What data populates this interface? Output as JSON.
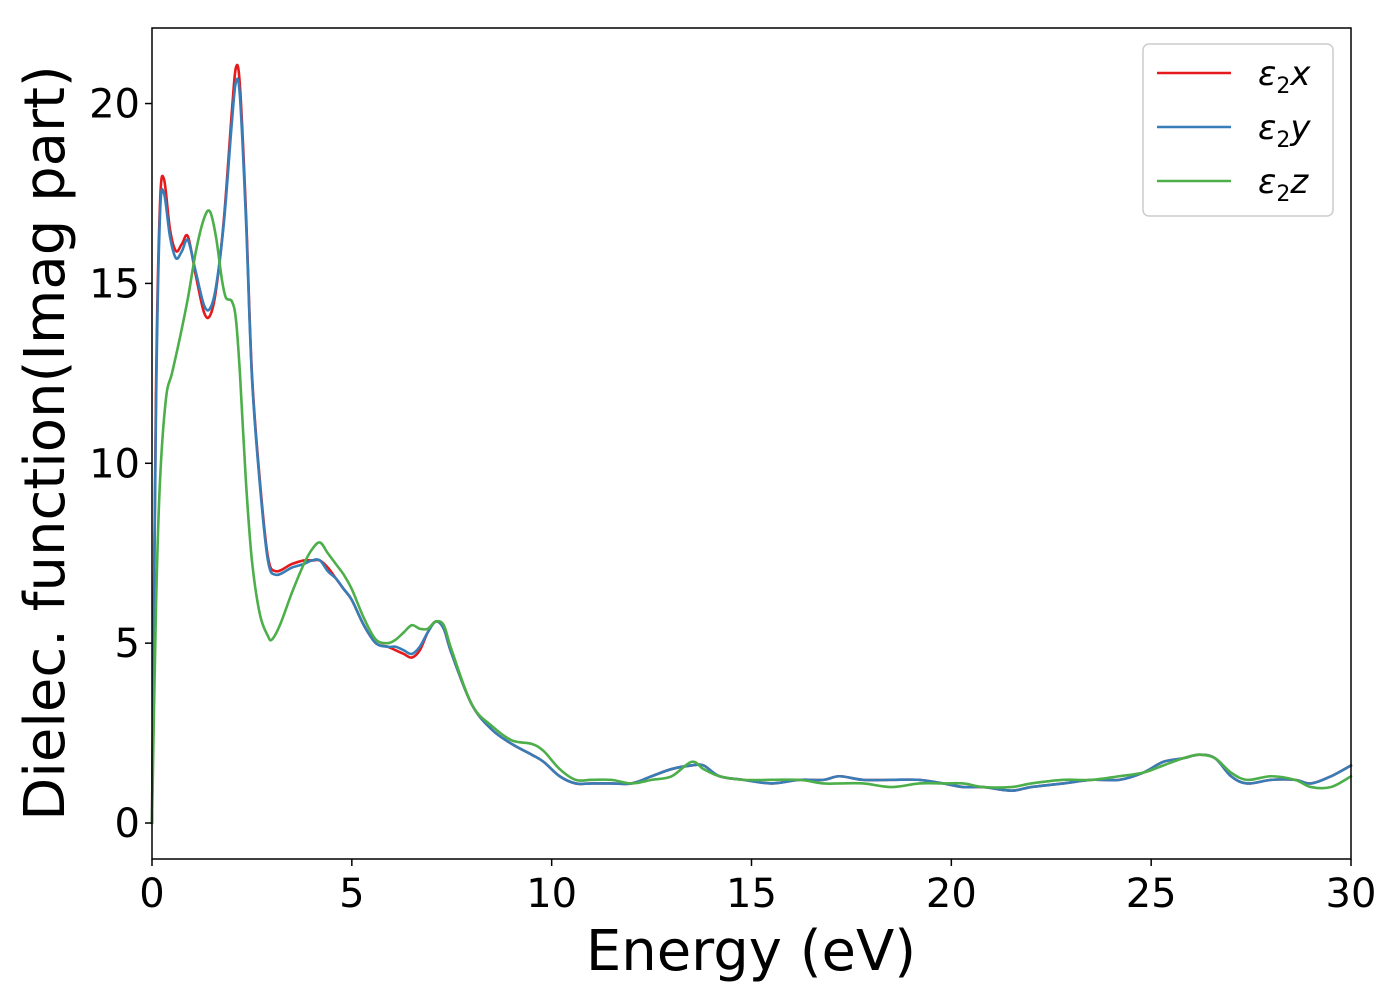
{
  "chart_data": {
    "type": "line",
    "xlabel": "Energy (eV)",
    "ylabel": "Dielec. function(Imag part)",
    "xlim": [
      0,
      30
    ],
    "ylim": [
      -1.0,
      22.1
    ],
    "xticks": [
      0,
      5,
      10,
      15,
      20,
      25,
      30
    ],
    "yticks": [
      0,
      5,
      10,
      15,
      20
    ],
    "grid": false,
    "legend_position": "top-right",
    "series": [
      {
        "name": "ε₂x",
        "legend_base": "ε",
        "legend_sub": "2",
        "legend_axis": "x",
        "color": "#e41a1c",
        "x": [
          0,
          0.1,
          0.2,
          0.3,
          0.45,
          0.6,
          0.75,
          0.9,
          1.1,
          1.3,
          1.45,
          1.6,
          1.8,
          2.0,
          2.1,
          2.2,
          2.35,
          2.5,
          2.7,
          2.9,
          3.1,
          3.5,
          3.8,
          4.0,
          4.2,
          4.4,
          4.6,
          4.8,
          5.0,
          5.3,
          5.6,
          5.9,
          6.1,
          6.3,
          6.5,
          6.7,
          6.9,
          7.1,
          7.3,
          7.5,
          8.0,
          8.5,
          9.0,
          9.5,
          9.8,
          10.2,
          10.6,
          11.0,
          11.5,
          12.0,
          12.5,
          13.0,
          13.5,
          13.8,
          14.2,
          14.8,
          15.5,
          16.2,
          16.8,
          17.2,
          17.8,
          18.5,
          19.2,
          19.8,
          20.3,
          20.8,
          21.5,
          22.0,
          22.8,
          23.5,
          24.2,
          24.8,
          25.3,
          25.8,
          26.2,
          26.6,
          27.0,
          27.4,
          28.0,
          28.6,
          29.0,
          29.5,
          30.0
        ],
        "y": [
          0,
          12.0,
          17.2,
          17.9,
          16.5,
          15.9,
          16.1,
          16.3,
          15.2,
          14.2,
          14.1,
          14.8,
          16.8,
          19.8,
          21.0,
          20.5,
          17.0,
          12.5,
          9.5,
          7.4,
          7.0,
          7.2,
          7.3,
          7.3,
          7.3,
          7.1,
          6.8,
          6.5,
          6.2,
          5.5,
          5.0,
          4.9,
          4.8,
          4.7,
          4.6,
          4.8,
          5.3,
          5.6,
          5.4,
          4.7,
          3.3,
          2.6,
          2.2,
          1.9,
          1.7,
          1.3,
          1.1,
          1.1,
          1.1,
          1.1,
          1.3,
          1.5,
          1.6,
          1.6,
          1.3,
          1.2,
          1.1,
          1.2,
          1.2,
          1.3,
          1.2,
          1.2,
          1.2,
          1.1,
          1.0,
          1.0,
          0.9,
          1.0,
          1.1,
          1.2,
          1.2,
          1.4,
          1.7,
          1.8,
          1.9,
          1.8,
          1.3,
          1.1,
          1.2,
          1.2,
          1.1,
          1.3,
          1.6
        ]
      },
      {
        "name": "ε₂y",
        "legend_base": "ε",
        "legend_sub": "2",
        "legend_axis": "y",
        "color": "#377eb8",
        "x": [
          0,
          0.1,
          0.2,
          0.3,
          0.45,
          0.6,
          0.75,
          0.9,
          1.1,
          1.3,
          1.45,
          1.6,
          1.8,
          2.0,
          2.1,
          2.2,
          2.35,
          2.5,
          2.7,
          2.9,
          3.1,
          3.5,
          3.8,
          4.0,
          4.2,
          4.4,
          4.6,
          4.8,
          5.0,
          5.3,
          5.6,
          5.9,
          6.1,
          6.3,
          6.5,
          6.7,
          6.9,
          7.1,
          7.3,
          7.5,
          8.0,
          8.5,
          9.0,
          9.5,
          9.8,
          10.2,
          10.6,
          11.0,
          11.5,
          12.0,
          12.5,
          13.0,
          13.5,
          13.8,
          14.2,
          14.8,
          15.5,
          16.2,
          16.8,
          17.2,
          17.8,
          18.5,
          19.2,
          19.8,
          20.3,
          20.8,
          21.5,
          22.0,
          22.8,
          23.5,
          24.2,
          24.8,
          25.3,
          25.8,
          26.2,
          26.6,
          27.0,
          27.4,
          28.0,
          28.6,
          29.0,
          29.5,
          30.0
        ],
        "y": [
          0,
          11.5,
          16.9,
          17.5,
          16.3,
          15.7,
          15.9,
          16.2,
          15.3,
          14.4,
          14.3,
          14.9,
          16.7,
          19.5,
          20.6,
          20.2,
          16.8,
          12.4,
          9.4,
          7.3,
          6.9,
          7.1,
          7.2,
          7.3,
          7.3,
          7.0,
          6.8,
          6.5,
          6.2,
          5.5,
          5.0,
          4.9,
          4.9,
          4.8,
          4.7,
          4.9,
          5.3,
          5.6,
          5.4,
          4.7,
          3.3,
          2.6,
          2.2,
          1.9,
          1.7,
          1.3,
          1.1,
          1.1,
          1.1,
          1.1,
          1.3,
          1.5,
          1.6,
          1.6,
          1.3,
          1.2,
          1.1,
          1.2,
          1.2,
          1.3,
          1.2,
          1.2,
          1.2,
          1.1,
          1.0,
          1.0,
          0.9,
          1.0,
          1.1,
          1.2,
          1.2,
          1.4,
          1.7,
          1.8,
          1.9,
          1.8,
          1.3,
          1.1,
          1.2,
          1.2,
          1.1,
          1.3,
          1.6
        ]
      },
      {
        "name": "ε₂z",
        "legend_base": "ε",
        "legend_sub": "2",
        "legend_axis": "z",
        "color": "#4daf4a",
        "x": [
          0,
          0.1,
          0.2,
          0.35,
          0.5,
          0.7,
          0.9,
          1.1,
          1.3,
          1.45,
          1.6,
          1.75,
          1.85,
          2.0,
          2.1,
          2.2,
          2.35,
          2.5,
          2.7,
          2.9,
          3.0,
          3.2,
          3.5,
          3.8,
          4.0,
          4.2,
          4.4,
          4.6,
          4.8,
          5.0,
          5.3,
          5.6,
          5.9,
          6.1,
          6.3,
          6.5,
          6.7,
          6.9,
          7.1,
          7.3,
          7.5,
          8.0,
          8.5,
          9.0,
          9.5,
          9.8,
          10.2,
          10.6,
          11.0,
          11.5,
          12.0,
          12.5,
          13.0,
          13.5,
          13.8,
          14.2,
          14.8,
          15.5,
          16.2,
          16.8,
          17.2,
          17.8,
          18.5,
          19.2,
          19.8,
          20.3,
          20.8,
          21.5,
          22.0,
          22.8,
          23.5,
          24.2,
          24.8,
          25.3,
          25.8,
          26.2,
          26.6,
          27.0,
          27.4,
          28.0,
          28.6,
          29.0,
          29.5,
          30.0
        ],
        "y": [
          0,
          6.0,
          9.5,
          11.8,
          12.5,
          13.5,
          14.6,
          15.9,
          16.8,
          17.0,
          16.3,
          15.1,
          14.6,
          14.5,
          14.0,
          12.5,
          9.5,
          7.3,
          5.8,
          5.2,
          5.1,
          5.5,
          6.4,
          7.2,
          7.6,
          7.8,
          7.5,
          7.2,
          6.9,
          6.5,
          5.7,
          5.1,
          5.0,
          5.1,
          5.3,
          5.5,
          5.4,
          5.4,
          5.6,
          5.5,
          4.8,
          3.3,
          2.7,
          2.3,
          2.2,
          2.0,
          1.5,
          1.2,
          1.2,
          1.2,
          1.1,
          1.2,
          1.3,
          1.7,
          1.5,
          1.3,
          1.2,
          1.2,
          1.2,
          1.1,
          1.1,
          1.1,
          1.0,
          1.1,
          1.1,
          1.1,
          1.0,
          1.0,
          1.1,
          1.2,
          1.2,
          1.3,
          1.4,
          1.6,
          1.8,
          1.9,
          1.8,
          1.4,
          1.2,
          1.3,
          1.2,
          1.0,
          1.0,
          1.3
        ]
      }
    ]
  }
}
